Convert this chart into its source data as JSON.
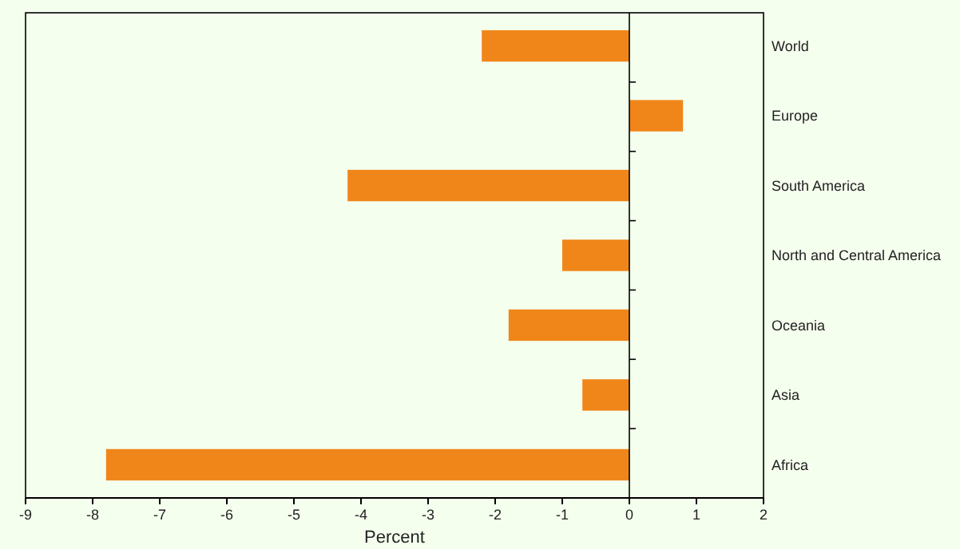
{
  "chart_data": {
    "type": "bar",
    "orientation": "horizontal",
    "categories": [
      "World",
      "Europe",
      "South America",
      "North and Central America",
      "Oceania",
      "Asia",
      "Africa"
    ],
    "values": [
      -2.2,
      0.8,
      -4.2,
      -1.0,
      -1.8,
      -0.7,
      -7.8
    ],
    "color": "#f0861a",
    "xlabel": "Percent",
    "xlim": [
      -9,
      2
    ],
    "xticks": [
      -9,
      -8,
      -7,
      -6,
      -5,
      -4,
      -3,
      -2,
      -1,
      0,
      1,
      2
    ]
  }
}
